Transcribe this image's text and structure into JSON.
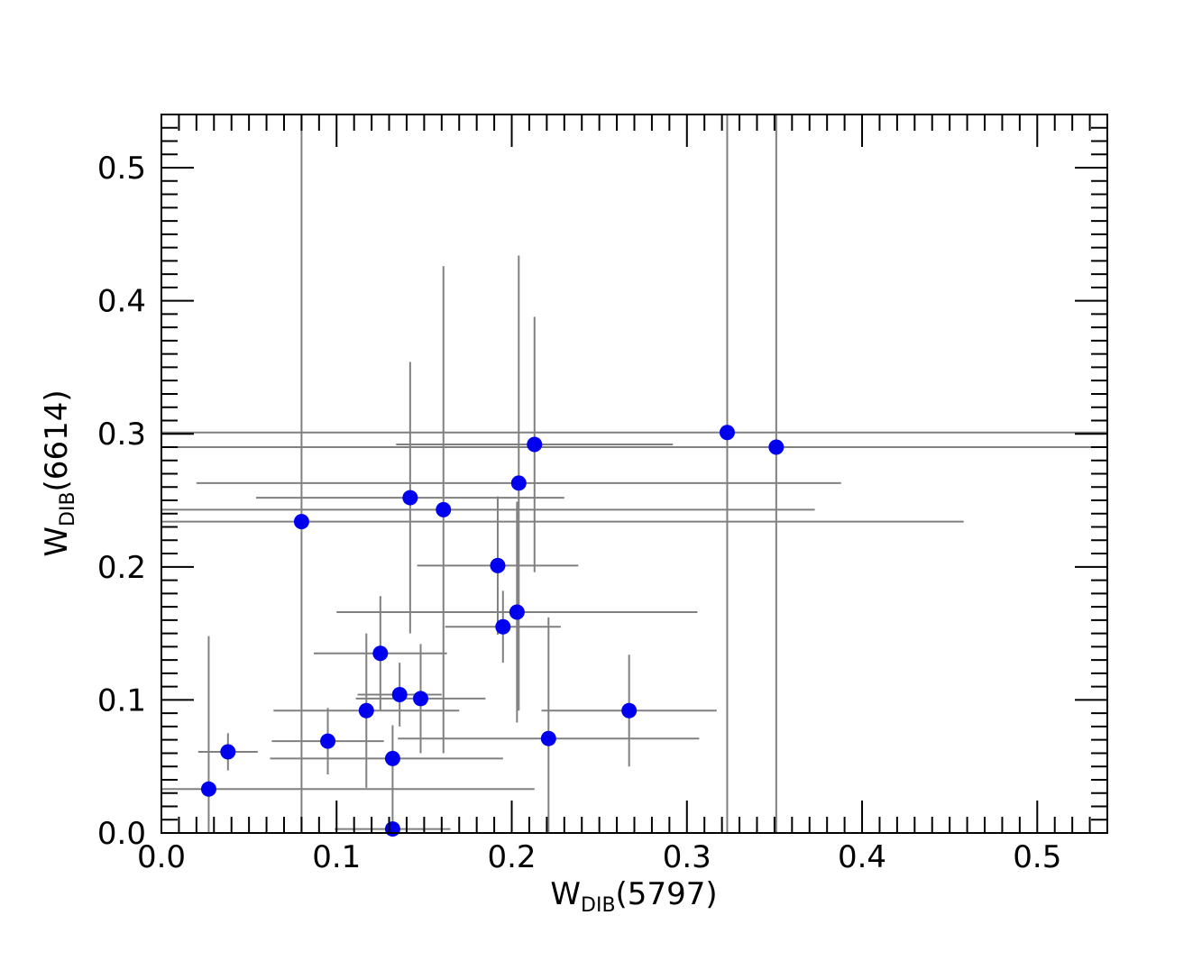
{
  "chart_data": {
    "type": "scatter",
    "xlabel": {
      "main": "W",
      "sub": "DIB",
      "suffix": "(5797)"
    },
    "ylabel": {
      "main": "W",
      "sub": "DIB",
      "suffix": "(6614)"
    },
    "xlim": [
      0.0,
      0.54
    ],
    "ylim": [
      0.0,
      0.54
    ],
    "xticks": [
      "0.0",
      "0.1",
      "0.2",
      "0.3",
      "0.4",
      "0.5"
    ],
    "yticks": [
      "0.0",
      "0.1",
      "0.2",
      "0.3",
      "0.4",
      "0.5"
    ],
    "marker_color": "#0000ee",
    "errorbar_color": "#808080",
    "points": [
      {
        "x": 0.027,
        "y": 0.033,
        "xerr": [
          0.027,
          0.186
        ],
        "yerr": [
          0.033,
          0.115
        ]
      },
      {
        "x": 0.038,
        "y": 0.061,
        "xerr": [
          0.017,
          0.017
        ],
        "yerr": [
          0.014,
          0.014
        ]
      },
      {
        "x": 0.08,
        "y": 0.234,
        "xerr": [
          0.08,
          0.378
        ],
        "yerr": [
          0.234,
          0.306
        ]
      },
      {
        "x": 0.095,
        "y": 0.069,
        "xerr": [
          0.032,
          0.032
        ],
        "yerr": [
          0.025,
          0.025
        ]
      },
      {
        "x": 0.117,
        "y": 0.092,
        "xerr": [
          0.053,
          0.053
        ],
        "yerr": [
          0.058,
          0.058
        ]
      },
      {
        "x": 0.125,
        "y": 0.135,
        "xerr": [
          0.038,
          0.038
        ],
        "yerr": [
          0.043,
          0.043
        ]
      },
      {
        "x": 0.132,
        "y": 0.056,
        "xerr": [
          0.07,
          0.063
        ],
        "yerr": [
          0.056,
          0.025
        ]
      },
      {
        "x": 0.132,
        "y": 0.003,
        "xerr": [
          0.033,
          0.033
        ],
        "yerr": [
          0.003,
          0.003
        ]
      },
      {
        "x": 0.136,
        "y": 0.104,
        "xerr": [
          0.024,
          0.024
        ],
        "yerr": [
          0.024,
          0.024
        ]
      },
      {
        "x": 0.142,
        "y": 0.252,
        "xerr": [
          0.088,
          0.088
        ],
        "yerr": [
          0.102,
          0.102
        ]
      },
      {
        "x": 0.148,
        "y": 0.101,
        "xerr": [
          0.037,
          0.037
        ],
        "yerr": [
          0.041,
          0.041
        ]
      },
      {
        "x": 0.161,
        "y": 0.243,
        "xerr": [
          0.161,
          0.212
        ],
        "yerr": [
          0.183,
          0.183
        ]
      },
      {
        "x": 0.192,
        "y": 0.201,
        "xerr": [
          0.046,
          0.046
        ],
        "yerr": [
          0.052,
          0.052
        ]
      },
      {
        "x": 0.195,
        "y": 0.155,
        "xerr": [
          0.033,
          0.033
        ],
        "yerr": [
          0.027,
          0.027
        ]
      },
      {
        "x": 0.203,
        "y": 0.166,
        "xerr": [
          0.103,
          0.103
        ],
        "yerr": [
          0.083,
          0.083
        ]
      },
      {
        "x": 0.204,
        "y": 0.263,
        "xerr": [
          0.184,
          0.184
        ],
        "yerr": [
          0.171,
          0.171
        ]
      },
      {
        "x": 0.213,
        "y": 0.292,
        "xerr": [
          0.079,
          0.079
        ],
        "yerr": [
          0.096,
          0.096
        ]
      },
      {
        "x": 0.221,
        "y": 0.071,
        "xerr": [
          0.086,
          0.086
        ],
        "yerr": [
          0.071,
          0.091
        ]
      },
      {
        "x": 0.267,
        "y": 0.092,
        "xerr": [
          0.05,
          0.05
        ],
        "yerr": [
          0.042,
          0.042
        ]
      },
      {
        "x": 0.323,
        "y": 0.301,
        "xerr": [
          0.323,
          0.323
        ],
        "yerr": [
          0.301,
          0.301
        ]
      },
      {
        "x": 0.351,
        "y": 0.29,
        "xerr": [
          0.351,
          0.351
        ],
        "yerr": [
          0.29,
          0.29
        ]
      }
    ]
  }
}
